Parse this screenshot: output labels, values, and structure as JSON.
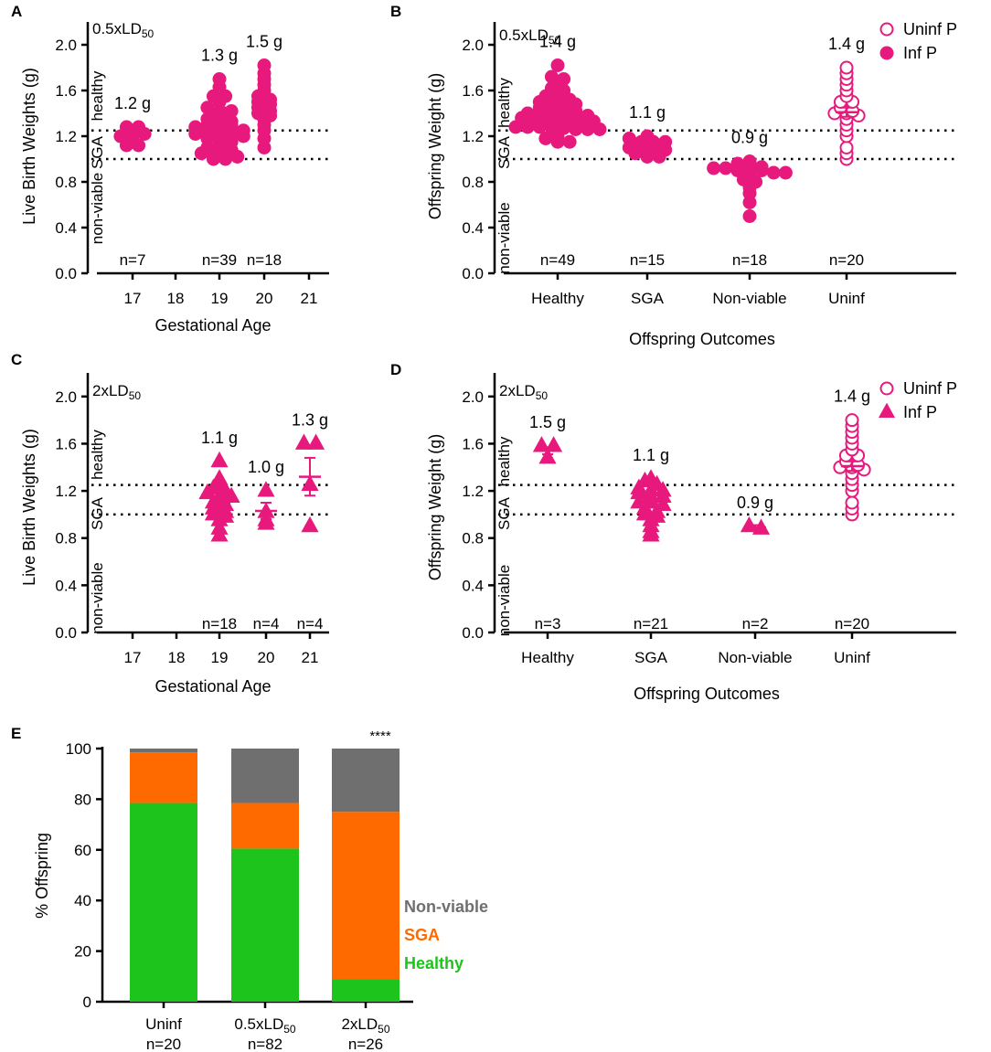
{
  "colors": {
    "magenta": "#e8197d",
    "healthy": "#1cc41c",
    "sga": "#ff6a00",
    "nonviable": "#6f6f6f",
    "axis": "#000000"
  },
  "chart_data": [
    {
      "panel": "A",
      "type": "scatter",
      "xlabel": "Gestational Age",
      "ylabel": "Live Birth Weights (g)",
      "dose_label": {
        "prefix": "0.5xLD",
        "sub": "50"
      },
      "zone_labels": [
        "healthy",
        "SGA",
        "non-viable"
      ],
      "x_ticks": [
        "17",
        "18",
        "19",
        "20",
        "21"
      ],
      "y_ticks": [
        "0.0",
        "0.4",
        "0.8",
        "1.2",
        "1.6",
        "2.0"
      ],
      "ylim": [
        0,
        2.2
      ],
      "marker": "circle",
      "thresholds": [
        1.0,
        1.25
      ],
      "groups": [
        {
          "x": "17",
          "mean": 1.2,
          "sem": 0.04,
          "label": "1.2 g",
          "n": "n=7",
          "values": [
            1.28,
            1.28,
            1.2,
            1.2,
            1.22,
            1.12,
            1.12
          ]
        },
        {
          "x": "19",
          "mean": 1.27,
          "sem": 0.03,
          "label": "1.3 g",
          "n": "n=39",
          "values": [
            1.7,
            1.63,
            1.55,
            1.55,
            1.5,
            1.45,
            1.42,
            1.42,
            1.4,
            1.4,
            1.35,
            1.33,
            1.33,
            1.3,
            1.3,
            1.3,
            1.28,
            1.28,
            1.25,
            1.25,
            1.25,
            1.22,
            1.22,
            1.2,
            1.2,
            1.2,
            1.18,
            1.15,
            1.15,
            1.12,
            1.1,
            1.1,
            1.08,
            1.05,
            1.05,
            1.02,
            1.02,
            1.0,
            1.0
          ]
        },
        {
          "x": "20",
          "mean": 1.46,
          "sem": 0.05,
          "label": "1.5 g",
          "n": "n=18",
          "values": [
            1.82,
            1.75,
            1.7,
            1.65,
            1.6,
            1.55,
            1.52,
            1.5,
            1.48,
            1.45,
            1.42,
            1.4,
            1.38,
            1.35,
            1.3,
            1.25,
            1.18,
            1.1
          ]
        }
      ]
    },
    {
      "panel": "B",
      "type": "scatter",
      "xlabel": "Offspring Outcomes",
      "ylabel": "Offspring Weight (g)",
      "dose_label": {
        "prefix": "0.5xLD",
        "sub": "50"
      },
      "zone_labels": [
        "healthy",
        "SGA",
        "non-viable"
      ],
      "x_ticks": [
        "Healthy",
        "SGA",
        "Non-viable",
        "Uninf"
      ],
      "y_ticks": [
        "0.0",
        "0.4",
        "0.8",
        "1.2",
        "1.6",
        "2.0"
      ],
      "ylim": [
        0,
        2.2
      ],
      "marker": "circle",
      "thresholds": [
        1.0,
        1.25
      ],
      "legend": [
        "Uninf P",
        "Inf P"
      ],
      "groups": [
        {
          "x": "Healthy",
          "mean": 1.39,
          "sem": 0.02,
          "label": "1.4 g",
          "n": "n=49",
          "filled": true,
          "values": [
            1.82,
            1.72,
            1.7,
            1.65,
            1.62,
            1.6,
            1.58,
            1.55,
            1.55,
            1.52,
            1.5,
            1.5,
            1.48,
            1.48,
            1.45,
            1.45,
            1.42,
            1.42,
            1.4,
            1.4,
            1.4,
            1.38,
            1.38,
            1.38,
            1.36,
            1.36,
            1.35,
            1.35,
            1.35,
            1.33,
            1.33,
            1.32,
            1.32,
            1.3,
            1.3,
            1.3,
            1.3,
            1.28,
            1.28,
            1.28,
            1.27,
            1.27,
            1.26,
            1.26,
            1.26,
            1.2,
            1.18,
            1.15,
            1.15
          ]
        },
        {
          "x": "SGA",
          "mean": 1.12,
          "sem": 0.01,
          "label": "1.1 g",
          "n": "n=15",
          "filled": true,
          "values": [
            1.2,
            1.18,
            1.15,
            1.15,
            1.15,
            1.13,
            1.12,
            1.12,
            1.1,
            1.1,
            1.08,
            1.08,
            1.05,
            1.02,
            1.02
          ]
        },
        {
          "x": "Non-viable",
          "mean": 0.88,
          "sem": 0.03,
          "label": "0.9 g",
          "n": "n=18",
          "filled": true,
          "values": [
            0.98,
            0.96,
            0.95,
            0.93,
            0.92,
            0.92,
            0.9,
            0.9,
            0.9,
            0.88,
            0.88,
            0.85,
            0.82,
            0.8,
            0.75,
            0.7,
            0.62,
            0.5
          ]
        },
        {
          "x": "Uninf",
          "mean": 1.41,
          "sem": 0.04,
          "label": "1.4 g",
          "n": "n=20",
          "filled": false,
          "values": [
            1.8,
            1.75,
            1.7,
            1.65,
            1.6,
            1.55,
            1.5,
            1.5,
            1.45,
            1.42,
            1.4,
            1.4,
            1.38,
            1.35,
            1.3,
            1.25,
            1.2,
            1.1,
            1.05,
            1.0
          ]
        }
      ]
    },
    {
      "panel": "C",
      "type": "scatter",
      "xlabel": "Gestational Age",
      "ylabel": "Live Birth Weights (g)",
      "dose_label": {
        "prefix": "2xLD",
        "sub": "50"
      },
      "zone_labels": [
        "healthy",
        "SGA",
        "non-viable"
      ],
      "x_ticks": [
        "17",
        "18",
        "19",
        "20",
        "21"
      ],
      "y_ticks": [
        "0.0",
        "0.4",
        "0.8",
        "1.2",
        "1.6",
        "2.0"
      ],
      "ylim": [
        0,
        2.2
      ],
      "marker": "triangle",
      "thresholds": [
        1.0,
        1.25
      ],
      "groups": [
        {
          "x": "19",
          "mean": 1.1,
          "sem": 0.04,
          "label": "1.1 g",
          "n": "n=18",
          "values": [
            1.45,
            1.3,
            1.25,
            1.22,
            1.2,
            1.18,
            1.15,
            1.15,
            1.12,
            1.1,
            1.08,
            1.05,
            1.02,
            1.0,
            0.98,
            0.95,
            0.88,
            0.82
          ]
        },
        {
          "x": "20",
          "mean": 1.03,
          "sem": 0.07,
          "label": "1.0 g",
          "n": "n=4",
          "values": [
            1.2,
            1.02,
            0.95,
            0.92
          ]
        },
        {
          "x": "21",
          "mean": 1.32,
          "sem": 0.16,
          "label": "1.3 g",
          "n": "n=4",
          "values": [
            1.6,
            1.6,
            1.25,
            0.9
          ]
        }
      ]
    },
    {
      "panel": "D",
      "type": "scatter",
      "xlabel": "Offspring Outcomes",
      "ylabel": "Offspring Weight (g)",
      "dose_label": {
        "prefix": "2xLD",
        "sub": "50"
      },
      "zone_labels": [
        "healthy",
        "SGA",
        "non-viable"
      ],
      "x_ticks": [
        "Healthy",
        "SGA",
        "Non-viable",
        "Uninf"
      ],
      "y_ticks": [
        "0.0",
        "0.4",
        "0.8",
        "1.2",
        "1.6",
        "2.0"
      ],
      "ylim": [
        0,
        2.2
      ],
      "marker": "triangle",
      "thresholds": [
        1.0,
        1.25
      ],
      "legend": [
        "Uninf P",
        "Inf P"
      ],
      "groups": [
        {
          "x": "Healthy",
          "mean": 1.54,
          "sem": 0.03,
          "label": "1.5 g",
          "n": "n=3",
          "filled": true,
          "values": [
            1.58,
            1.58,
            1.48
          ]
        },
        {
          "x": "SGA",
          "mean": 1.12,
          "sem": 0.03,
          "label": "1.1 g",
          "n": "n=21",
          "filled": true,
          "values": [
            1.3,
            1.28,
            1.25,
            1.22,
            1.2,
            1.2,
            1.18,
            1.15,
            1.15,
            1.12,
            1.1,
            1.1,
            1.08,
            1.05,
            1.02,
            1.0,
            0.98,
            0.95,
            0.9,
            0.85,
            0.82
          ]
        },
        {
          "x": "Non-viable",
          "mean": 0.89,
          "sem": 0.02,
          "label": "0.9 g",
          "n": "n=2",
          "filled": true,
          "values": [
            0.9,
            0.88
          ]
        },
        {
          "x": "Uninf",
          "mean": 1.41,
          "sem": 0.04,
          "label": "1.4 g",
          "n": "n=20",
          "filled": false,
          "marker": "circle",
          "values": [
            1.8,
            1.75,
            1.7,
            1.65,
            1.6,
            1.55,
            1.5,
            1.5,
            1.45,
            1.42,
            1.4,
            1.4,
            1.38,
            1.35,
            1.3,
            1.25,
            1.2,
            1.1,
            1.05,
            1.0
          ]
        }
      ]
    },
    {
      "panel": "E",
      "type": "bar",
      "stacked": true,
      "ylabel": "% Offspring",
      "y_ticks": [
        "0",
        "20",
        "40",
        "60",
        "80",
        "100"
      ],
      "ylim": [
        0,
        100
      ],
      "categories": [
        {
          "name_prefix": "Uninf",
          "sub": "",
          "n": "n=20"
        },
        {
          "name_prefix": "0.5xLD",
          "sub": "50",
          "n": "n=82"
        },
        {
          "name_prefix": "2xLD",
          "sub": "50",
          "n": "n=26"
        }
      ],
      "series": [
        {
          "name": "Healthy",
          "color_key": "healthy",
          "values": [
            78.5,
            60.5,
            9
          ]
        },
        {
          "name": "SGA",
          "color_key": "sga",
          "values": [
            20,
            18,
            66
          ]
        },
        {
          "name": "Non-viable",
          "color_key": "nonviable",
          "values": [
            1.5,
            21.5,
            25
          ]
        }
      ],
      "legend_order": [
        "Non-viable",
        "SGA",
        "Healthy"
      ],
      "annotation": "****",
      "annotation_category": 2
    }
  ]
}
